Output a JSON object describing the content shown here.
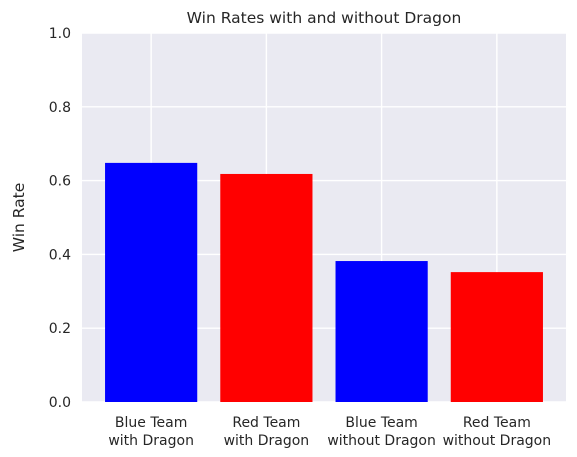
{
  "chart_data": {
    "type": "bar",
    "title": "Win Rates with and without Dragon",
    "xlabel": "",
    "ylabel": "Win Rate",
    "ylim": [
      0,
      1.0
    ],
    "yticks": [
      "0.0",
      "0.2",
      "0.4",
      "0.6",
      "0.8",
      "1.0"
    ],
    "categories": [
      [
        "Blue Team",
        "with Dragon"
      ],
      [
        "Red Team",
        "with Dragon"
      ],
      [
        "Blue Team",
        "without Dragon"
      ],
      [
        "Red Team",
        "without Dragon"
      ]
    ],
    "values": [
      0.648,
      0.618,
      0.382,
      0.352
    ],
    "colors": [
      "#0000ff",
      "#ff0000",
      "#0000ff",
      "#ff0000"
    ],
    "background": "#eaeaf2",
    "grid": true
  }
}
